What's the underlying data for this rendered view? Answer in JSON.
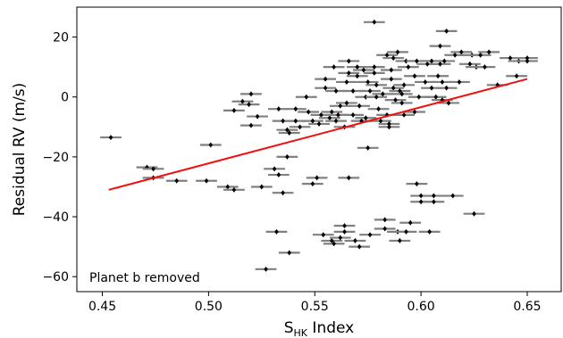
{
  "chart_data": {
    "type": "scatter",
    "title": "",
    "xlabel_main": "S",
    "xlabel_sub": "HK",
    "xlabel_suffix": " Index",
    "ylabel": "Residual RV (m/s)",
    "xlim": [
      0.438,
      0.666
    ],
    "ylim": [
      -65,
      30
    ],
    "xticks": [
      0.45,
      0.5,
      0.55,
      0.6,
      0.65
    ],
    "xtick_labels": [
      "0.45",
      "0.50",
      "0.55",
      "0.60",
      "0.65"
    ],
    "yticks": [
      -60,
      -40,
      -20,
      0,
      20
    ],
    "ytick_labels": [
      "−60",
      "−40",
      "−20",
      "0",
      "20"
    ],
    "annotation": "Planet b removed",
    "fit_line": {
      "x": [
        0.453,
        0.65
      ],
      "y": [
        -31,
        6
      ],
      "color": "#ee1111"
    },
    "marker_color": "#000000",
    "errorbar_color": "#808080",
    "xerr": 0.005,
    "points": [
      [
        0.454,
        -13.5
      ],
      [
        0.471,
        -23.5
      ],
      [
        0.474,
        -24
      ],
      [
        0.474,
        -27
      ],
      [
        0.485,
        -28
      ],
      [
        0.499,
        -28
      ],
      [
        0.501,
        -16
      ],
      [
        0.509,
        -30
      ],
      [
        0.512,
        -31
      ],
      [
        0.512,
        -4.5
      ],
      [
        0.516,
        -1.5
      ],
      [
        0.519,
        -2.5
      ],
      [
        0.52,
        1
      ],
      [
        0.52,
        -9.5
      ],
      [
        0.523,
        -6.5
      ],
      [
        0.525,
        -30
      ],
      [
        0.527,
        -57.5
      ],
      [
        0.531,
        -24
      ],
      [
        0.533,
        -26
      ],
      [
        0.532,
        -45
      ],
      [
        0.535,
        -32
      ],
      [
        0.533,
        -4
      ],
      [
        0.535,
        -8
      ],
      [
        0.537,
        -20
      ],
      [
        0.538,
        -52
      ],
      [
        0.537,
        -11
      ],
      [
        0.538,
        -12
      ],
      [
        0.541,
        -4
      ],
      [
        0.541,
        -8
      ],
      [
        0.543,
        -10
      ],
      [
        0.546,
        0
      ],
      [
        0.547,
        -5
      ],
      [
        0.549,
        -29
      ],
      [
        0.551,
        -27
      ],
      [
        0.549,
        -8
      ],
      [
        0.552,
        -9
      ],
      [
        0.553,
        -6
      ],
      [
        0.555,
        6
      ],
      [
        0.555,
        3
      ],
      [
        0.554,
        -46
      ],
      [
        0.557,
        -7
      ],
      [
        0.558,
        -5
      ],
      [
        0.559,
        10
      ],
      [
        0.558,
        -48
      ],
      [
        0.559,
        -49
      ],
      [
        0.56,
        2
      ],
      [
        0.56,
        -8
      ],
      [
        0.561,
        -6
      ],
      [
        0.562,
        -3
      ],
      [
        0.562,
        -47
      ],
      [
        0.564,
        -45
      ],
      [
        0.564,
        -43
      ],
      [
        0.565,
        5
      ],
      [
        0.564,
        -10
      ],
      [
        0.566,
        -27
      ],
      [
        0.565,
        -2
      ],
      [
        0.566,
        8
      ],
      [
        0.566,
        12
      ],
      [
        0.568,
        -6
      ],
      [
        0.568,
        2
      ],
      [
        0.569,
        -48
      ],
      [
        0.57,
        7
      ],
      [
        0.57,
        10
      ],
      [
        0.571,
        -50
      ],
      [
        0.571,
        -3
      ],
      [
        0.572,
        -8
      ],
      [
        0.573,
        9
      ],
      [
        0.574,
        -7
      ],
      [
        0.575,
        -17
      ],
      [
        0.574,
        0
      ],
      [
        0.575,
        5
      ],
      [
        0.576,
        2
      ],
      [
        0.576,
        -46
      ],
      [
        0.578,
        25
      ],
      [
        0.578,
        8
      ],
      [
        0.578,
        10
      ],
      [
        0.579,
        4
      ],
      [
        0.579,
        0
      ],
      [
        0.58,
        -4
      ],
      [
        0.581,
        -8
      ],
      [
        0.582,
        1
      ],
      [
        0.583,
        -44
      ],
      [
        0.583,
        -41
      ],
      [
        0.584,
        -6
      ],
      [
        0.584,
        14
      ],
      [
        0.585,
        -9
      ],
      [
        0.585,
        -10
      ],
      [
        0.586,
        6
      ],
      [
        0.586,
        9
      ],
      [
        0.587,
        13
      ],
      [
        0.587,
        3
      ],
      [
        0.588,
        -1
      ],
      [
        0.589,
        15
      ],
      [
        0.59,
        2
      ],
      [
        0.589,
        -45
      ],
      [
        0.59,
        -48
      ],
      [
        0.591,
        1
      ],
      [
        0.591,
        -2
      ],
      [
        0.592,
        4
      ],
      [
        0.592,
        -6
      ],
      [
        0.593,
        -45
      ],
      [
        0.593,
        12
      ],
      [
        0.594,
        10
      ],
      [
        0.595,
        -42
      ],
      [
        0.597,
        -5
      ],
      [
        0.597,
        7
      ],
      [
        0.598,
        -29
      ],
      [
        0.598,
        12
      ],
      [
        0.599,
        0
      ],
      [
        0.6,
        -33
      ],
      [
        0.6,
        -35
      ],
      [
        0.602,
        5
      ],
      [
        0.603,
        11
      ],
      [
        0.604,
        -45
      ],
      [
        0.605,
        12
      ],
      [
        0.605,
        3
      ],
      [
        0.606,
        -33
      ],
      [
        0.606,
        -35
      ],
      [
        0.607,
        0
      ],
      [
        0.608,
        7
      ],
      [
        0.609,
        17
      ],
      [
        0.609,
        11
      ],
      [
        0.61,
        -1
      ],
      [
        0.61,
        5
      ],
      [
        0.611,
        12
      ],
      [
        0.612,
        22
      ],
      [
        0.612,
        3
      ],
      [
        0.613,
        -2
      ],
      [
        0.615,
        -33
      ],
      [
        0.616,
        14
      ],
      [
        0.618,
        5
      ],
      [
        0.619,
        15
      ],
      [
        0.623,
        11
      ],
      [
        0.624,
        14
      ],
      [
        0.625,
        -39
      ],
      [
        0.626,
        10
      ],
      [
        0.628,
        14
      ],
      [
        0.63,
        10
      ],
      [
        0.632,
        15
      ],
      [
        0.636,
        4
      ],
      [
        0.642,
        13
      ],
      [
        0.645,
        7
      ],
      [
        0.646,
        12
      ],
      [
        0.65,
        12
      ],
      [
        0.65,
        13
      ]
    ]
  }
}
